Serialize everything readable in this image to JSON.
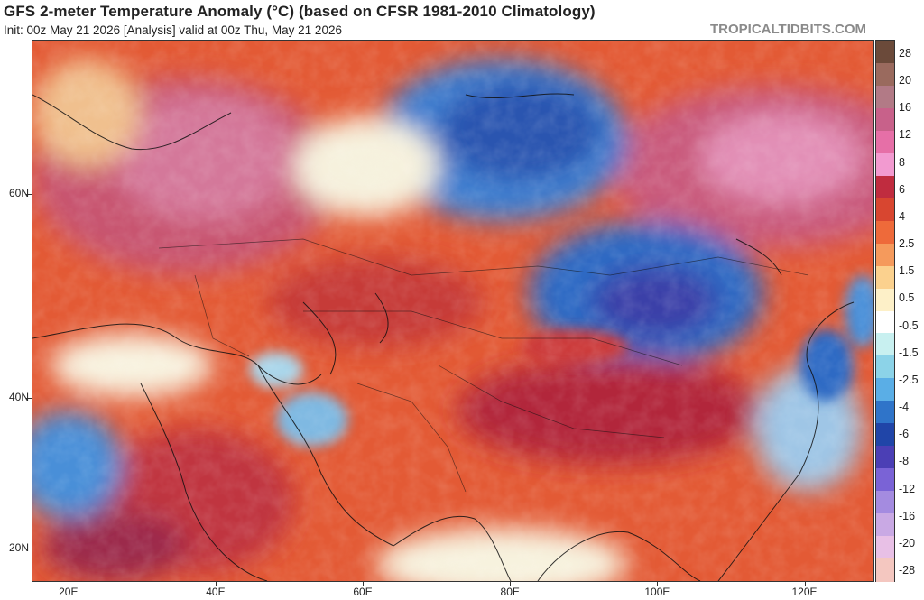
{
  "header": {
    "title": "GFS 2-meter Temperature Anomaly (°C) (based on CFSR 1981-2010 Climatology)",
    "subtitle": "Init: 00z May 21 2026   [Analysis]   valid at 00z Thu, May 21 2026",
    "brand": "TROPICALTIDBITS.COM"
  },
  "map": {
    "region": "Eurasia / Middle East / Asia",
    "lat_labels": [
      {
        "label": "60N",
        "lat": 60
      },
      {
        "label": "40N",
        "lat": 40
      },
      {
        "label": "20N",
        "lat": 20
      }
    ],
    "lon_labels": [
      {
        "label": "20E",
        "lon": 20
      },
      {
        "label": "40E",
        "lon": 40
      },
      {
        "label": "60E",
        "lon": 60
      },
      {
        "label": "80E",
        "lon": 80
      },
      {
        "label": "100E",
        "lon": 100
      },
      {
        "label": "120E",
        "lon": 120
      }
    ],
    "extent": {
      "lon_min": 15,
      "lon_max": 129.5,
      "lat_min": 15,
      "lat_max": 70
    }
  },
  "colorbar": {
    "labels": [
      "28",
      "20",
      "16",
      "12",
      "8",
      "6",
      "4",
      "2.5",
      "1.5",
      "0.5",
      "-0.5",
      "-1.5",
      "-2.5",
      "-4",
      "-6",
      "-8",
      "-12",
      "-16",
      "-20",
      "-28"
    ],
    "colors": [
      "#6b4a3a",
      "#9a6a5e",
      "#b27a86",
      "#c8618a",
      "#e66fa7",
      "#f29ad0",
      "#c02c3f",
      "#d84630",
      "#ee6a3a",
      "#f59a5c",
      "#fbd18e",
      "#fdf0c8",
      "#ffffff",
      "#c8f0f0",
      "#8cd3e8",
      "#5aaee6",
      "#2f74c9",
      "#2045a8",
      "#4b3fb5",
      "#7a63d6",
      "#a48be0",
      "#c9a9e4",
      "#e8c0e6",
      "#f4c7c0"
    ]
  }
}
